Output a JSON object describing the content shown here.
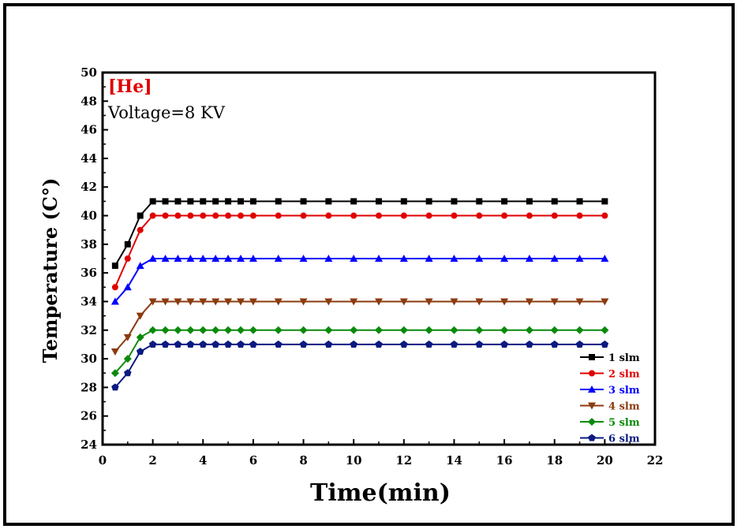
{
  "chart_data": {
    "type": "line",
    "annotations": {
      "gas": "[He]",
      "voltage": "Voltage=8 KV"
    },
    "xlabel": "Time(min)",
    "ylabel": "Temperature (C°)",
    "xlim": [
      0,
      22
    ],
    "ylim": [
      24,
      50
    ],
    "x_ticks": [
      0,
      2,
      4,
      6,
      8,
      10,
      12,
      14,
      16,
      18,
      20,
      22
    ],
    "y_ticks": [
      24,
      26,
      28,
      30,
      32,
      34,
      36,
      38,
      40,
      42,
      44,
      46,
      48,
      50
    ],
    "grid": false,
    "legend_position": "bottom-right",
    "x": [
      0.5,
      1,
      1.5,
      2,
      2.5,
      3,
      3.5,
      4,
      4.5,
      5,
      5.5,
      6,
      7,
      8,
      9,
      10,
      11,
      12,
      13,
      14,
      15,
      16,
      17,
      18,
      19,
      20
    ],
    "series": [
      {
        "name": "1 slm",
        "color": "#000000",
        "marker": "square",
        "values": [
          36.5,
          38,
          40,
          41,
          41,
          41,
          41,
          41,
          41,
          41,
          41,
          41,
          41,
          41,
          41,
          41,
          41,
          41,
          41,
          41,
          41,
          41,
          41,
          41,
          41,
          41
        ]
      },
      {
        "name": "2 slm",
        "color": "#e00000",
        "marker": "circle",
        "values": [
          35,
          37,
          39,
          40,
          40,
          40,
          40,
          40,
          40,
          40,
          40,
          40,
          40,
          40,
          40,
          40,
          40,
          40,
          40,
          40,
          40,
          40,
          40,
          40,
          40,
          40
        ]
      },
      {
        "name": "3 slm",
        "color": "#0000ff",
        "marker": "triangle-up",
        "values": [
          34,
          35,
          36.5,
          37,
          37,
          37,
          37,
          37,
          37,
          37,
          37,
          37,
          37,
          37,
          37,
          37,
          37,
          37,
          37,
          37,
          37,
          37,
          37,
          37,
          37,
          37
        ]
      },
      {
        "name": "4 slm",
        "color": "#8b3a0f",
        "marker": "triangle-down",
        "values": [
          30.5,
          31.5,
          33,
          34,
          34,
          34,
          34,
          34,
          34,
          34,
          34,
          34,
          34,
          34,
          34,
          34,
          34,
          34,
          34,
          34,
          34,
          34,
          34,
          34,
          34,
          34
        ]
      },
      {
        "name": "5 slm",
        "color": "#0a8a0a",
        "marker": "diamond",
        "values": [
          29,
          30,
          31.5,
          32,
          32,
          32,
          32,
          32,
          32,
          32,
          32,
          32,
          32,
          32,
          32,
          32,
          32,
          32,
          32,
          32,
          32,
          32,
          32,
          32,
          32,
          32
        ]
      },
      {
        "name": "6 slm",
        "color": "#0a1a80",
        "marker": "pentagon",
        "values": [
          28,
          29,
          30.5,
          31,
          31,
          31,
          31,
          31,
          31,
          31,
          31,
          31,
          31,
          31,
          31,
          31,
          31,
          31,
          31,
          31,
          31,
          31,
          31,
          31,
          31,
          31
        ]
      }
    ]
  }
}
